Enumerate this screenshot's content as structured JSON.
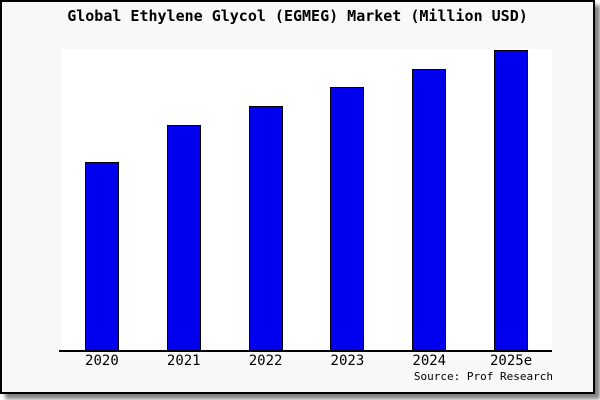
{
  "chart_data": {
    "type": "bar",
    "title": "Global Ethylene Glycol (EGMEG) Market (Million USD)",
    "categories": [
      "2020",
      "2021",
      "2022",
      "2023",
      "2024",
      "2025e"
    ],
    "values": [
      62.8,
      75.1,
      81.4,
      87.7,
      93.7,
      100.0
    ],
    "value_note": "y-axis has no tick labels; values estimated from bar heights relative to 2025e = 100",
    "ylim": [
      0,
      100.3
    ],
    "xlabel": "",
    "ylabel": "",
    "grid": false,
    "legend": false,
    "bar_color": "#0000ee",
    "bar_border_color": "#000000",
    "source": "Source: Prof Research"
  },
  "colors": {
    "frame_background": "#f8f8f8",
    "plot_background": "#ffffff",
    "border": "#000000",
    "text": "#000000"
  }
}
